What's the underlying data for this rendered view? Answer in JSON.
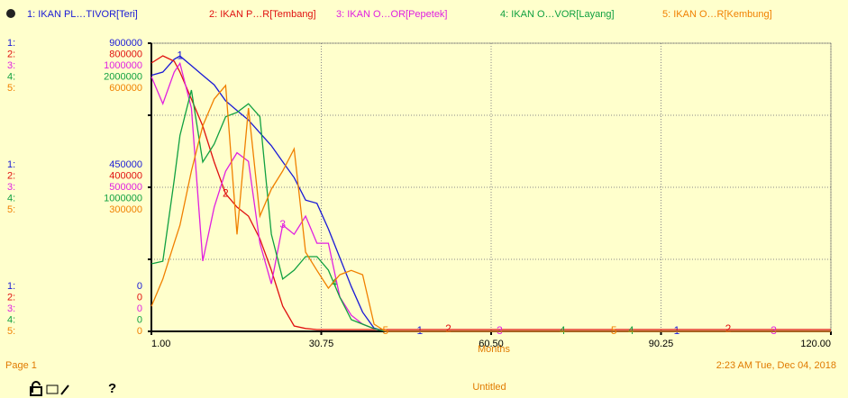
{
  "chart_data": {
    "type": "line",
    "xlabel": "Months",
    "page_label": "Page 1",
    "timestamp": "2:23 AM  Tue, Dec 04, 2018",
    "document_name": "Untitled",
    "help_icon": "?",
    "x": [
      1,
      3,
      5,
      6,
      8,
      10,
      12,
      14,
      16,
      18,
      20,
      22,
      24,
      26,
      28,
      30,
      32,
      34,
      36,
      38,
      40,
      42,
      120
    ],
    "xlim": [
      1,
      120
    ],
    "xticks": [
      {
        "value": 1,
        "label": "1.00"
      },
      {
        "value": 30.75,
        "label": "30.75"
      },
      {
        "value": 60.5,
        "label": "60.50"
      },
      {
        "value": 90.25,
        "label": "90.25"
      },
      {
        "value": 120,
        "label": "120.00"
      }
    ],
    "grid": true,
    "series": [
      {
        "name": "1: IKAN PL…TIVOR[Teri]",
        "id": "1",
        "axis_label": "1:",
        "color": "#1a1ad6",
        "ylim": [
          0,
          900000
        ],
        "yticks": [
          0,
          450000,
          900000
        ],
        "values": [
          800000,
          810000,
          850000,
          860000,
          830000,
          800000,
          770000,
          720000,
          690000,
          660000,
          620000,
          580000,
          530000,
          480000,
          410000,
          400000,
          320000,
          230000,
          140000,
          60000,
          10000,
          0,
          0
        ]
      },
      {
        "name": "2: IKAN P…R[Tembang]",
        "id": "2",
        "axis_label": "2:",
        "color": "#e01010",
        "ylim": [
          0,
          800000
        ],
        "yticks": [
          0,
          400000,
          800000
        ],
        "values": [
          745000,
          765000,
          750000,
          720000,
          645000,
          570000,
          470000,
          382000,
          345000,
          320000,
          257000,
          170000,
          70000,
          15000,
          8000,
          5000,
          5000,
          5000,
          5000,
          5000,
          5000,
          5000,
          5000
        ]
      },
      {
        "name": "3: IKAN O…OR[Pepetek]",
        "id": "3",
        "axis_label": "3:",
        "color": "#e020e0",
        "ylim": [
          0,
          1000000
        ],
        "yticks": [
          0,
          500000,
          1000000
        ],
        "values": [
          884000,
          790000,
          900000,
          930000,
          775000,
          244000,
          431000,
          556000,
          620000,
          590000,
          306000,
          165000,
          369000,
          337000,
          400000,
          306000,
          306000,
          119000,
          56000,
          25000,
          9000,
          0,
          0
        ]
      },
      {
        "name": "4: IKAN O…VOR[Layang]",
        "id": "4",
        "axis_label": "4:",
        "color": "#10a040",
        "ylim": [
          0,
          2000000
        ],
        "yticks": [
          0,
          1000000,
          2000000
        ],
        "values": [
          469000,
          487000,
          1050000,
          1360000,
          1675000,
          1175000,
          1300000,
          1490000,
          1520000,
          1580000,
          1490000,
          675000,
          363000,
          425000,
          519000,
          519000,
          425000,
          237000,
          81000,
          50000,
          19000,
          0,
          0
        ]
      },
      {
        "name": "5: IKAN O…R[Kembung]",
        "id": "5",
        "axis_label": "5:",
        "color": "#f08000",
        "ylim": [
          0,
          600000
        ],
        "yticks": [
          0,
          300000,
          600000
        ],
        "values": [
          52000,
          109000,
          184000,
          221000,
          334000,
          428000,
          484000,
          512000,
          202000,
          465000,
          240000,
          296000,
          334000,
          380000,
          165000,
          127000,
          90000,
          118000,
          127000,
          118000,
          15000,
          0,
          0
        ]
      }
    ]
  }
}
